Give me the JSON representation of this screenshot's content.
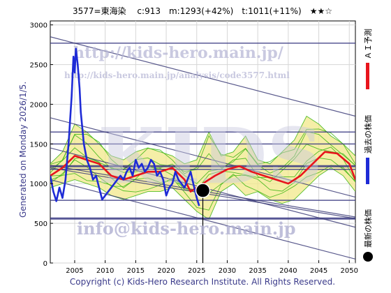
{
  "header": {
    "title": "3577=東海染　 c:913　m:1293(+42%)　t:1011(+11%)　★★☆"
  },
  "side_texts": {
    "generated": "Generated on Monday 2026/1/5.",
    "legend_latest": "最新の株価",
    "legend_past": "過去の株価",
    "legend_ai": "ＡＩ予測"
  },
  "watermarks": {
    "url_main": "http://kids-hero.main.jp/",
    "url_analysis": "http://kids-hero.main.jp/analysis/code3577.html",
    "big": "KIDS",
    "email": "info@kids-hero.main.jp"
  },
  "footer": {
    "copyright": "Copyright (c) Kids-Hero Research Institute. All Rights Reserved."
  },
  "colors": {
    "past": "#1e2bd6",
    "ai": "#e8141c",
    "band_fill": "#f2e88a",
    "band_line": "#44b81a",
    "trend": "#3c3c78",
    "hline": "#3a3a82",
    "marker": "#000000"
  },
  "chart_data": {
    "type": "line",
    "title": "3577=東海染　 c:913　m:1293(+42%)　t:1011(+11%)　★★☆",
    "xlabel": "",
    "ylabel": "",
    "xlim": [
      2001,
      2051
    ],
    "ylim": [
      0,
      3050
    ],
    "grid": true,
    "x_ticks": [
      2005,
      2010,
      2015,
      2020,
      2025,
      2030,
      2035,
      2040,
      2045,
      2050
    ],
    "y_ticks": [
      0,
      500,
      1000,
      1500,
      2000,
      2500,
      3000
    ],
    "legend_position": "right",
    "current": {
      "x": 2026.0,
      "y": 913
    },
    "horizontal_levels": [
      {
        "y": 2770,
        "width": 1.5
      },
      {
        "y": 1650,
        "width": 1.5
      },
      {
        "y": 1500,
        "width": 1.5
      },
      {
        "y": 1220,
        "width": 3
      },
      {
        "y": 1180,
        "width": 1.5
      },
      {
        "y": 790,
        "width": 1.5
      },
      {
        "y": 560,
        "width": 3
      }
    ],
    "trend_lines": [
      {
        "x": [
          2001,
          2051
        ],
        "y": [
          2850,
          1850
        ]
      },
      {
        "x": [
          2001,
          2051
        ],
        "y": [
          1830,
          830
        ]
      },
      {
        "x": [
          2001,
          2051
        ],
        "y": [
          1230,
          580
        ]
      },
      {
        "x": [
          2001,
          2051
        ],
        "y": [
          1200,
          560
        ]
      },
      {
        "x": [
          2001,
          2051
        ],
        "y": [
          1050,
          50
        ]
      },
      {
        "x": [
          2001,
          2051
        ],
        "y": [
          1450,
          450
        ]
      }
    ],
    "series": [
      {
        "name": "過去の株価",
        "x": [
          2001.0,
          2001.5,
          2002.0,
          2002.5,
          2003.0,
          2003.5,
          2004.0,
          2004.5,
          2004.8,
          2005.0,
          2005.2,
          2005.5,
          2005.8,
          2006.0,
          2006.5,
          2007.0,
          2007.5,
          2008.0,
          2008.5,
          2009.0,
          2009.5,
          2010.0,
          2010.5,
          2011.0,
          2011.5,
          2012.0,
          2012.5,
          2013.0,
          2013.5,
          2014.0,
          2014.5,
          2015.0,
          2015.5,
          2016.0,
          2016.5,
          2017.0,
          2017.5,
          2018.0,
          2018.5,
          2019.0,
          2019.5,
          2020.0,
          2020.5,
          2021.0,
          2021.5,
          2022.0,
          2022.5,
          2023.0,
          2023.5,
          2024.0,
          2024.5,
          2025.0,
          2025.4
        ],
        "y": [
          1100,
          900,
          780,
          950,
          820,
          1050,
          1500,
          2100,
          2600,
          2400,
          2700,
          2500,
          2200,
          1900,
          1500,
          1300,
          1200,
          1050,
          1100,
          950,
          800,
          850,
          900,
          950,
          1000,
          1050,
          1100,
          1050,
          1150,
          1200,
          1100,
          1300,
          1200,
          1250,
          1150,
          1200,
          1300,
          1250,
          1100,
          1150,
          1050,
          850,
          950,
          1000,
          1150,
          1050,
          1000,
          950,
          1050,
          1150,
          980,
          820,
          720
        ]
      },
      {
        "name": "ＡＩ予測",
        "x": [
          2001,
          2003,
          2005,
          2007,
          2009,
          2011,
          2013,
          2015,
          2017,
          2019,
          2021,
          2023,
          2024,
          2025,
          2026,
          2027,
          2028,
          2030,
          2032,
          2034,
          2036,
          2038,
          2040,
          2042,
          2044,
          2046,
          2048,
          2050,
          2051
        ],
        "y": [
          1100,
          1200,
          1350,
          1300,
          1250,
          1100,
          1050,
          1100,
          1150,
          1150,
          1200,
          1050,
          900,
          950,
          1000,
          1050,
          1100,
          1180,
          1220,
          1150,
          1100,
          1050,
          1000,
          1100,
          1250,
          1400,
          1380,
          1250,
          1050
        ]
      },
      {
        "name": "",
        "x": [
          2001,
          2003,
          2005,
          2007,
          2009,
          2011,
          2013,
          2015,
          2017,
          2019,
          2021,
          2023,
          2025,
          2027,
          2029,
          2031,
          2033,
          2035,
          2037,
          2039,
          2041,
          2043,
          2045,
          2047,
          2049,
          2051
        ],
        "y": [
          1250,
          1400,
          1750,
          1650,
          1500,
          1350,
          1300,
          1400,
          1450,
          1400,
          1350,
          1250,
          1300,
          1650,
          1350,
          1400,
          1600,
          1300,
          1250,
          1400,
          1550,
          1850,
          1750,
          1600,
          1500,
          1350
        ]
      },
      {
        "name": "",
        "x": [
          2001,
          2003,
          2005,
          2007,
          2009,
          2011,
          2013,
          2015,
          2017,
          2019,
          2021,
          2023,
          2025,
          2027,
          2029,
          2031,
          2033,
          2035,
          2037,
          2039,
          2041,
          2043,
          2045,
          2047,
          2049,
          2051
        ],
        "y": [
          950,
          1000,
          1050,
          1000,
          950,
          850,
          800,
          850,
          900,
          900,
          950,
          800,
          650,
          550,
          900,
          1000,
          850,
          900,
          800,
          750,
          800,
          950,
          1100,
          1200,
          1100,
          900
        ]
      }
    ]
  }
}
